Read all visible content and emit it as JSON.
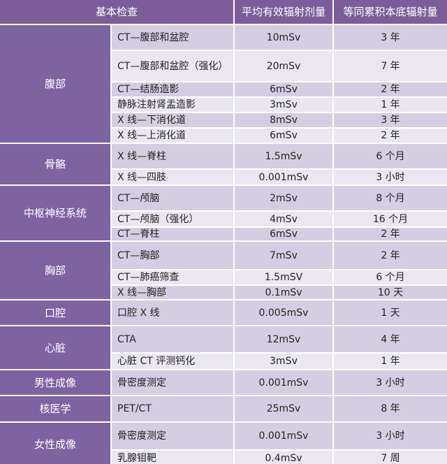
{
  "header": [
    "基本检查",
    "平均有效辐射剂量",
    "等同累积本底辐射量"
  ],
  "groups": [
    {
      "name": "腹部",
      "rows": [
        [
          "CT—腹部和盆腔",
          "10mSv",
          "3 年"
        ],
        [
          "CT—腹部和盆腔（强化）",
          "20mSv",
          "7 年"
        ],
        [
          "CT—结肠造影",
          "6mSv",
          "2 年"
        ],
        [
          "静脉注射肾盂造影",
          "3mSv",
          "1 年"
        ],
        [
          "X 线—下消化道",
          "8mSv",
          "3 年"
        ],
        [
          "X 线—上消化道",
          "6mSv",
          "2 年"
        ]
      ]
    },
    {
      "name": "骨骼",
      "rows": [
        [
          "X 线—脊柱",
          "1.5mSv",
          "6 个月"
        ],
        [
          "X 线—四肢",
          "0.001mSv",
          "3 小时"
        ]
      ]
    },
    {
      "name": "中枢神经系统",
      "rows": [
        [
          "CT—颅脑",
          "2mSv",
          "8 个月"
        ],
        [
          "CT—颅脑（强化）",
          "4mSv",
          "16 个月"
        ],
        [
          "CT—脊柱",
          "6mSv",
          "2 年"
        ]
      ]
    },
    {
      "name": "胸部",
      "rows": [
        [
          "CT—胸部",
          "7mSv",
          "2 年"
        ],
        [
          "CT—肺癌筛查",
          "1.5mSV",
          "6 个月"
        ],
        [
          "X 线—胸部",
          "0.1mSv",
          "10 天"
        ]
      ]
    },
    {
      "name": "口腔",
      "rows": [
        [
          "口腔 X 线",
          "0.005mSv",
          "1 天"
        ]
      ]
    },
    {
      "name": "心脏",
      "rows": [
        [
          "CTA",
          "12mSv",
          "4 年"
        ],
        [
          "心脏 CT 评测钙化",
          "3mSv",
          "1 年"
        ]
      ]
    },
    {
      "name": "男性成像",
      "rows": [
        [
          "骨密度测定",
          "0.001mSv",
          "3 小时"
        ]
      ]
    },
    {
      "name": "核医学",
      "rows": [
        [
          "PET/CT",
          "25mSv",
          "8 年"
        ]
      ]
    },
    {
      "name": "女性成像",
      "rows": [
        [
          "骨密度测定",
          "0.001mSv",
          "3 小时"
        ],
        [
          "乳腺钼靶",
          "0.4mSv",
          "7 周"
        ]
      ]
    }
  ]
}
